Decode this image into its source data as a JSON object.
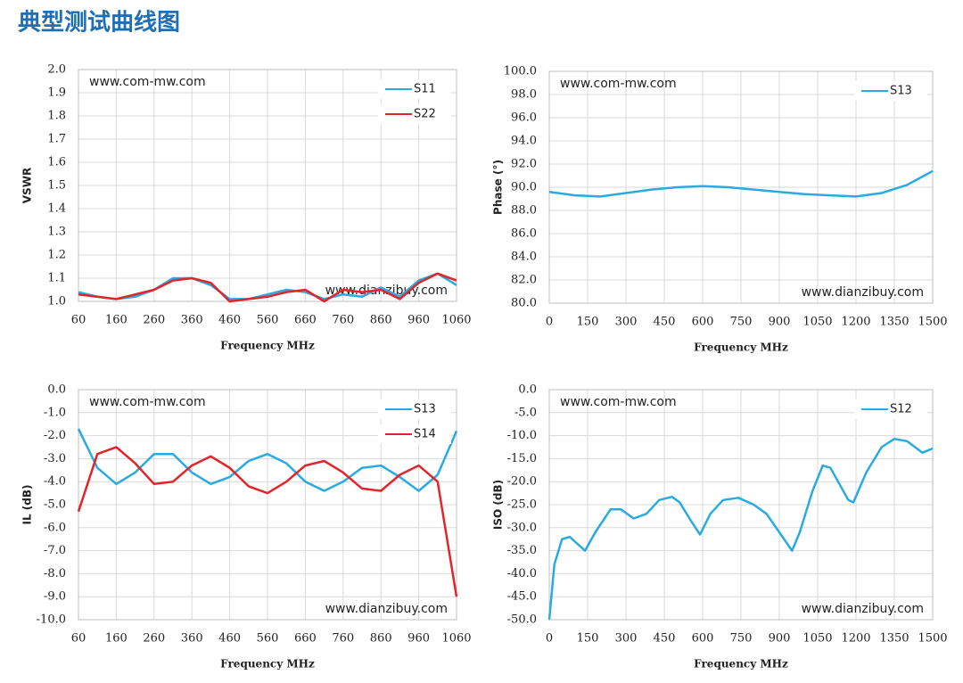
{
  "header": {
    "title": "典型测试曲线图"
  },
  "chart_data": [
    {
      "type": "line",
      "xlabel": "Frequency MHz",
      "ylabel": "VSWR",
      "grid": true,
      "legend": "upper right",
      "annotations": [
        "www.com-mw.com",
        "www.dianzibuy.com"
      ],
      "xlim": [
        60,
        1060
      ],
      "xticks": [
        60,
        160,
        260,
        360,
        460,
        560,
        660,
        760,
        860,
        960,
        1060
      ],
      "ylim": [
        1,
        2
      ],
      "yticks": [
        {
          "value": 1,
          "label": "1.0"
        },
        {
          "value": 1.1,
          "label": "1.1"
        },
        {
          "value": 1.2,
          "label": "1.2"
        },
        {
          "value": 1.3,
          "label": "1.3"
        },
        {
          "value": 1.4,
          "label": "1.4"
        },
        {
          "value": 1.5,
          "label": "1.5"
        },
        {
          "value": 1.6,
          "label": "1.6"
        },
        {
          "value": 1.7,
          "label": "1.7"
        },
        {
          "value": 1.8,
          "label": "1.8"
        },
        {
          "value": 1.9,
          "label": "1.9"
        },
        {
          "value": 2,
          "label": "2.0"
        }
      ],
      "x": [
        60,
        110,
        160,
        210,
        260,
        310,
        360,
        410,
        460,
        510,
        560,
        610,
        660,
        710,
        760,
        810,
        860,
        910,
        960,
        1010,
        1060
      ],
      "series": [
        {
          "name": "S11",
          "color": "#29abe2",
          "values": [
            1.04,
            1.02,
            1.01,
            1.02,
            1.05,
            1.1,
            1.1,
            1.07,
            1.01,
            1.01,
            1.03,
            1.05,
            1.04,
            1.01,
            1.03,
            1.02,
            1.06,
            1.02,
            1.09,
            1.12,
            1.07
          ]
        },
        {
          "name": "S22",
          "color": "#e3242b",
          "values": [
            1.03,
            1.02,
            1.01,
            1.03,
            1.05,
            1.09,
            1.1,
            1.08,
            1,
            1.01,
            1.02,
            1.04,
            1.05,
            1,
            1.05,
            1.04,
            1.05,
            1.01,
            1.08,
            1.12,
            1.09
          ]
        }
      ]
    },
    {
      "type": "line",
      "xlabel": "Frequency MHz",
      "ylabel": "Phase (°)",
      "grid": true,
      "legend": "upper right",
      "annotations": [
        "www.com-mw.com",
        "www.dianzibuy.com"
      ],
      "xlim": [
        0,
        1500
      ],
      "xticks": [
        0,
        150,
        300,
        450,
        600,
        750,
        900,
        1050,
        1200,
        1350,
        1500
      ],
      "ylim": [
        80,
        100
      ],
      "yticks": [
        {
          "value": 80,
          "label": "80.0"
        },
        {
          "value": 82,
          "label": "82.0"
        },
        {
          "value": 84,
          "label": "84.0"
        },
        {
          "value": 86,
          "label": "86.0"
        },
        {
          "value": 88,
          "label": "88.0"
        },
        {
          "value": 90,
          "label": "90.0"
        },
        {
          "value": 92,
          "label": "92.0"
        },
        {
          "value": 94,
          "label": "94.0"
        },
        {
          "value": 96,
          "label": "96.0"
        },
        {
          "value": 98,
          "label": "98.0"
        },
        {
          "value": 100,
          "label": "100.0"
        }
      ],
      "x": [
        0,
        100,
        200,
        300,
        400,
        500,
        600,
        700,
        800,
        900,
        1000,
        1100,
        1200,
        1300,
        1400,
        1500
      ],
      "series": [
        {
          "name": "S13",
          "color": "#29abe2",
          "values": [
            89.6,
            89.3,
            89.2,
            89.5,
            89.8,
            90,
            90.1,
            90,
            89.8,
            89.6,
            89.4,
            89.3,
            89.2,
            89.5,
            90.2,
            91.4
          ]
        }
      ]
    },
    {
      "type": "line",
      "xlabel": "Frequency MHz",
      "ylabel": "IL (dB)",
      "grid": true,
      "legend": "upper right",
      "annotations": [
        "www.com-mw.com",
        "www.dianzibuy.com"
      ],
      "xlim": [
        60,
        1060
      ],
      "xticks": [
        60,
        160,
        260,
        360,
        460,
        560,
        660,
        760,
        860,
        960,
        1060
      ],
      "ylim": [
        -10,
        0
      ],
      "yticks": [
        {
          "value": -10,
          "label": "-10.0"
        },
        {
          "value": -9,
          "label": "-9.0"
        },
        {
          "value": -8,
          "label": "-8.0"
        },
        {
          "value": -7,
          "label": "-7.0"
        },
        {
          "value": -6,
          "label": "-6.0"
        },
        {
          "value": -5,
          "label": "-5.0"
        },
        {
          "value": -4,
          "label": "-4.0"
        },
        {
          "value": -3,
          "label": "-3.0"
        },
        {
          "value": -2,
          "label": "-2.0"
        },
        {
          "value": -1,
          "label": "-1.0"
        },
        {
          "value": 0,
          "label": "0.0"
        }
      ],
      "x": [
        60,
        110,
        160,
        210,
        260,
        310,
        360,
        410,
        460,
        510,
        560,
        610,
        660,
        710,
        760,
        810,
        860,
        910,
        960,
        1010,
        1060
      ],
      "series": [
        {
          "name": "S13",
          "color": "#29abe2",
          "values": [
            -1.7,
            -3.4,
            -4.1,
            -3.6,
            -2.8,
            -2.8,
            -3.6,
            -4.1,
            -3.8,
            -3.1,
            -2.8,
            -3.2,
            -4,
            -4.4,
            -4,
            -3.4,
            -3.3,
            -3.8,
            -4.4,
            -3.7,
            -1.8
          ]
        },
        {
          "name": "S14",
          "color": "#e3242b",
          "values": [
            -5.3,
            -2.8,
            -2.5,
            -3.2,
            -4.1,
            -4,
            -3.3,
            -2.9,
            -3.4,
            -4.2,
            -4.5,
            -4,
            -3.3,
            -3.1,
            -3.6,
            -4.3,
            -4.4,
            -3.7,
            -3.3,
            -4,
            -9
          ]
        }
      ]
    },
    {
      "type": "line",
      "xlabel": "Frequency MHz",
      "ylabel": "ISO (dB)",
      "grid": true,
      "legend": "upper right",
      "annotations": [
        "www.com-mw.com",
        "www.dianzibuy.com"
      ],
      "xlim": [
        0,
        1500
      ],
      "xticks": [
        0,
        150,
        300,
        450,
        600,
        750,
        900,
        1050,
        1200,
        1350,
        1500
      ],
      "ylim": [
        -50,
        0
      ],
      "yticks": [
        {
          "value": -50,
          "label": "-50.0"
        },
        {
          "value": -45,
          "label": "-45.0"
        },
        {
          "value": -40,
          "label": "-40.0"
        },
        {
          "value": -35,
          "label": "-35.0"
        },
        {
          "value": -30,
          "label": "-30.0"
        },
        {
          "value": -25,
          "label": "-25.0"
        },
        {
          "value": -20,
          "label": "-20.0"
        },
        {
          "value": -15,
          "label": "-15.0"
        },
        {
          "value": -10,
          "label": "-10.0"
        },
        {
          "value": -5,
          "label": "-5.0"
        },
        {
          "value": 0,
          "label": "0.0"
        }
      ],
      "x": [
        0,
        20,
        50,
        80,
        110,
        140,
        180,
        240,
        280,
        330,
        380,
        430,
        480,
        510,
        560,
        590,
        630,
        680,
        740,
        800,
        850,
        900,
        950,
        980,
        1030,
        1070,
        1100,
        1170,
        1190,
        1240,
        1300,
        1350,
        1400,
        1460,
        1500
      ],
      "series": [
        {
          "name": "S12",
          "color": "#29abe2",
          "values": [
            -50,
            -38,
            -32.5,
            -32,
            -33.5,
            -35,
            -31,
            -26,
            -26,
            -28,
            -27,
            -24,
            -23.3,
            -24.5,
            -29,
            -31.5,
            -27,
            -24,
            -23.5,
            -25,
            -27,
            -31,
            -35,
            -31,
            -22,
            -16.5,
            -17,
            -24,
            -24.5,
            -18,
            -12.5,
            -10.7,
            -11.2,
            -13.7,
            -12.8
          ]
        }
      ]
    }
  ]
}
